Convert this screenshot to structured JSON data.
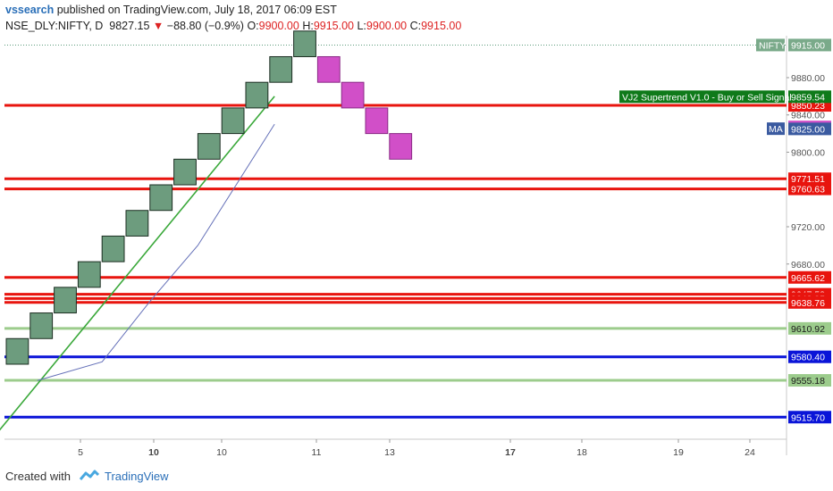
{
  "header": {
    "user": "vssearch",
    "text": "published on TradingView.com, July 18, 2017 06:09 EST"
  },
  "symbol": {
    "name": "NSE_DLY:NIFTY, D",
    "last": "9827.15",
    "arrow": "▼",
    "change": "−88.80 (−0.9%)",
    "o_label": "O:",
    "o": "9900.00",
    "h_label": "H:",
    "h": "9915.00",
    "l_label": "L:",
    "l": "9900.00",
    "c_label": "C:",
    "c": "9915.00"
  },
  "footer": {
    "created": "Created with",
    "brand": "TradingView"
  },
  "colors": {
    "up_brick": "#6d9c7e",
    "down_brick": "#d14fc8",
    "resistance": "#e8140e",
    "support_blue": "#0a14d8",
    "support_green": "#9ccc8c",
    "ma_green": "#3aa83a",
    "ma_blue": "#6470b8",
    "axis_bg": "#ffffff"
  },
  "chart_data": {
    "type": "renko",
    "brick_size": 27.5,
    "ylim": [
      9492,
      9925
    ],
    "y_ticks": [
      "9880.00",
      "9840.00",
      "9800.00",
      "9720.00",
      "9680.00"
    ],
    "x_ticks": [
      "5",
      "10",
      "10",
      "11",
      "13",
      "17",
      "18",
      "19",
      "24"
    ],
    "bold_x_ticks": [
      "10",
      "17"
    ],
    "bricks": [
      {
        "dir": "up",
        "low": 9572.5,
        "high": 9600
      },
      {
        "dir": "up",
        "low": 9600,
        "high": 9627.5
      },
      {
        "dir": "up",
        "low": 9627.5,
        "high": 9655
      },
      {
        "dir": "up",
        "low": 9655,
        "high": 9682.5
      },
      {
        "dir": "up",
        "low": 9682.5,
        "high": 9710
      },
      {
        "dir": "up",
        "low": 9710,
        "high": 9737.5
      },
      {
        "dir": "up",
        "low": 9737.5,
        "high": 9765
      },
      {
        "dir": "up",
        "low": 9765,
        "high": 9792.5
      },
      {
        "dir": "up",
        "low": 9792.5,
        "high": 9820
      },
      {
        "dir": "up",
        "low": 9820,
        "high": 9847.5
      },
      {
        "dir": "up",
        "low": 9847.5,
        "high": 9875
      },
      {
        "dir": "up",
        "low": 9875,
        "high": 9902.5
      },
      {
        "dir": "up",
        "low": 9902.5,
        "high": 9930
      },
      {
        "dir": "down",
        "low": 9875,
        "high": 9902.5
      },
      {
        "dir": "down",
        "low": 9847.5,
        "high": 9875
      },
      {
        "dir": "down",
        "low": 9820,
        "high": 9847.5
      },
      {
        "dir": "down",
        "low": 9792.5,
        "high": 9820
      }
    ],
    "levels": [
      {
        "value": 9850.23,
        "label": "9850.23",
        "color": "resistance"
      },
      {
        "value": 9771.51,
        "label": "9771.51",
        "color": "resistance"
      },
      {
        "value": 9760.63,
        "label": "9760.63",
        "color": "resistance"
      },
      {
        "value": 9665.62,
        "label": "9665.62",
        "color": "resistance"
      },
      {
        "value": 9647.58,
        "label": "9647.58",
        "color": "resistance"
      },
      {
        "value": 9642.95,
        "label": "9642.95",
        "color": "resistance"
      },
      {
        "value": 9638.76,
        "label": "9638.76",
        "color": "resistance"
      },
      {
        "value": 9610.92,
        "label": "9610.92",
        "color": "support_green"
      },
      {
        "value": 9580.4,
        "label": "9580.40",
        "color": "support_blue"
      },
      {
        "value": 9555.18,
        "label": "9555.18",
        "color": "support_green"
      },
      {
        "value": 9515.7,
        "label": "9515.70",
        "color": "support_blue"
      }
    ],
    "nifty_tag": {
      "label": "NIFTY",
      "value": "9915.00",
      "price": 9915
    },
    "supertrend_tag": {
      "label": "VJ2 Supertrend V1.0 - Buy or Sell Signal",
      "value": "9859.54",
      "price": 9859.54
    },
    "ma_tag": {
      "label": "MA",
      "value": "9827.15",
      "price": 9827.15
    },
    "extra_tag": {
      "value": "9825.00",
      "price": 9825
    },
    "series": [
      {
        "name": "MA green",
        "points": [
          [
            -0.5,
            9495
          ],
          [
            11.2,
            9860
          ]
        ]
      },
      {
        "name": "MA blue",
        "points": [
          [
            1.3,
            9555
          ],
          [
            4,
            9575
          ],
          [
            6,
            9640
          ],
          [
            8,
            9700
          ],
          [
            11.2,
            9830
          ]
        ]
      }
    ]
  }
}
